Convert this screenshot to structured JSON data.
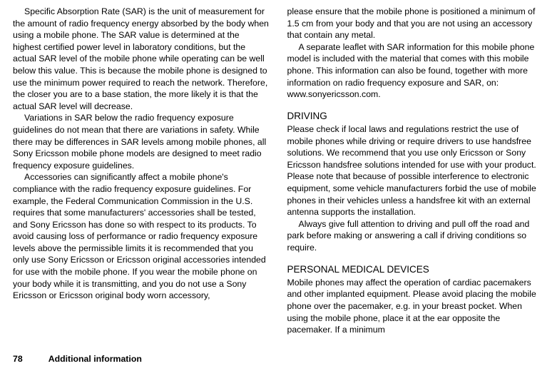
{
  "columns": {
    "left": {
      "p1": "Specific Absorption Rate (SAR) is the unit of measurement for the amount of radio frequency energy absorbed by the body when using a mobile phone. The SAR value is determined at the highest certified power level in laboratory conditions, but the actual SAR level of the mobile phone while operating can be well below this value. This is because the mobile phone is designed to use the minimum power required to reach the network. Therefore, the closer you are to a base station, the more likely it is that the actual SAR level will decrease.",
      "p2": "Variations in SAR below the radio frequency exposure guidelines do not mean that there are variations in safety. While there may be differences in SAR levels among mobile phones, all Sony Ericsson mobile phone models are designed to meet radio frequency exposure guidelines.",
      "p3": "Accessories can significantly affect a mobile phone's compliance with the radio frequency exposure guidelines. For example, the Federal Communication Commission in the U.S. requires that some manufacturers' accessories shall be tested, and Sony Ericsson has done so with respect to its products. To avoid causing loss of performance or radio frequency exposure levels above the permissible limits it is recommended that you only use Sony Ericsson or Ericsson original accessories intended for use with the mobile phone. If you wear the mobile phone on your body while it is transmitting, and you do not use a Sony Ericsson or Ericsson original body worn accessory,"
    },
    "right": {
      "p1": "please ensure that the mobile phone is positioned a minimum of 1.5 cm from your body and that you are not using an accessory that contain any metal.",
      "p2": "A separate leaflet with SAR information for this mobile phone model is included with the material that comes with this mobile phone. This information can also be found, together with more information on radio frequency exposure and SAR, on: www.sonyericsson.com.",
      "h1": "DRIVING",
      "p3": "Please check if local laws and regulations restrict the use of mobile phones while driving or require drivers to use handsfree solutions. We recommend that you use only Ericsson or Sony Ericsson handsfree solutions intended for use with your product. Please note that because of possible interference to electronic equipment,  some vehicle manufacturers forbid the use of mobile phones in their vehicles unless a handsfree kit with an external antenna supports the installation.",
      "p4": "Always give full attention to driving and pull off the road and park before making or answering a call if driving conditions so require.",
      "h2": "PERSONAL MEDICAL DEVICES",
      "p5": "Mobile phones may affect the operation of cardiac pacemakers and other implanted equipment. Please avoid placing the mobile phone over the pacemaker, e.g. in your breast pocket. When using the mobile phone, place it at the ear opposite the pacemaker. If a minimum"
    }
  },
  "footer": {
    "page_number": "78",
    "title": "Additional information"
  }
}
